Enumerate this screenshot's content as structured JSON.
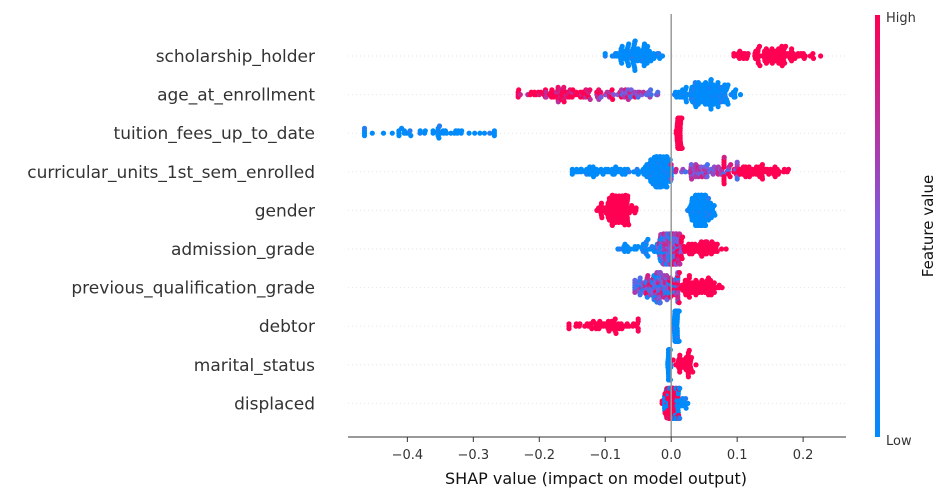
{
  "chart_data": {
    "type": "scatter",
    "subtype": "shap-beeswarm",
    "xlabel": "SHAP value (impact on model output)",
    "xlim": [
      -0.49,
      0.265
    ],
    "xticks": [
      -0.4,
      -0.3,
      -0.2,
      -0.1,
      0.0,
      0.1,
      0.2
    ],
    "xtick_labels": [
      "−0.4",
      "−0.3",
      "−0.2",
      "−0.1",
      "0.0",
      "0.1",
      "0.2"
    ],
    "colorbar": {
      "label": "Feature value",
      "high_label": "High",
      "low_label": "Low",
      "low_color": "#008bfb",
      "high_color": "#ff0052"
    },
    "zero_line": true,
    "features": [
      {
        "name": "scholarship_holder",
        "clusters": [
          {
            "center": -0.053,
            "spread": 0.018,
            "min": -0.1,
            "max": -0.01,
            "n": 90,
            "value": "low"
          },
          {
            "center": 0.15,
            "spread": 0.03,
            "min": 0.095,
            "max": 0.228,
            "n": 100,
            "value": "high"
          }
        ]
      },
      {
        "name": "age_at_enrollment",
        "clusters": [
          {
            "center": -0.16,
            "spread": 0.04,
            "min": -0.232,
            "max": -0.04,
            "n": 90,
            "value": "high-mixed"
          },
          {
            "center": -0.06,
            "spread": 0.025,
            "min": -0.12,
            "max": -0.01,
            "n": 40,
            "value": "mid"
          },
          {
            "center": 0.055,
            "spread": 0.022,
            "min": 0.005,
            "max": 0.105,
            "n": 140,
            "value": "low"
          }
        ]
      },
      {
        "name": "tuition_fees_up_to_date",
        "clusters": [
          {
            "center": -0.36,
            "spread": 0.06,
            "min": -0.465,
            "max": -0.268,
            "n": 50,
            "value": "low"
          },
          {
            "center": 0.012,
            "spread": 0.002,
            "min": 0.007,
            "max": 0.017,
            "n": 80,
            "value": "high"
          }
        ]
      },
      {
        "name": "curricular_units_1st_sem_enrolled",
        "clusters": [
          {
            "center": -0.09,
            "spread": 0.03,
            "min": -0.15,
            "max": -0.03,
            "n": 60,
            "value": "low"
          },
          {
            "center": -0.017,
            "spread": 0.01,
            "min": -0.04,
            "max": 0.0,
            "n": 120,
            "value": "low"
          },
          {
            "center": 0.05,
            "spread": 0.03,
            "min": 0.0,
            "max": 0.1,
            "n": 70,
            "value": "mid"
          },
          {
            "center": 0.12,
            "spread": 0.03,
            "min": 0.08,
            "max": 0.188,
            "n": 70,
            "value": "high"
          }
        ]
      },
      {
        "name": "gender",
        "clusters": [
          {
            "center": -0.08,
            "spread": 0.015,
            "min": -0.133,
            "max": -0.045,
            "n": 110,
            "value": "high"
          },
          {
            "center": 0.045,
            "spread": 0.01,
            "min": 0.02,
            "max": 0.07,
            "n": 120,
            "value": "low"
          }
        ]
      },
      {
        "name": "admission_grade",
        "clusters": [
          {
            "center": -0.03,
            "spread": 0.025,
            "min": -0.085,
            "max": 0.0,
            "n": 60,
            "value": "low"
          },
          {
            "center": 0.0,
            "spread": 0.01,
            "min": -0.02,
            "max": 0.015,
            "n": 110,
            "value": "mid"
          },
          {
            "center": 0.035,
            "spread": 0.025,
            "min": 0.0,
            "max": 0.09,
            "n": 80,
            "value": "high"
          }
        ]
      },
      {
        "name": "previous_qualification_grade",
        "clusters": [
          {
            "center": -0.02,
            "spread": 0.02,
            "min": -0.055,
            "max": 0.01,
            "n": 140,
            "value": "mixed"
          },
          {
            "center": 0.04,
            "spread": 0.02,
            "min": 0.0,
            "max": 0.08,
            "n": 80,
            "value": "high"
          }
        ]
      },
      {
        "name": "debtor",
        "clusters": [
          {
            "center": -0.1,
            "spread": 0.03,
            "min": -0.155,
            "max": -0.05,
            "n": 60,
            "value": "high"
          },
          {
            "center": 0.008,
            "spread": 0.002,
            "min": 0.004,
            "max": 0.013,
            "n": 90,
            "value": "low"
          }
        ]
      },
      {
        "name": "marital_status",
        "clusters": [
          {
            "center": -0.003,
            "spread": 0.001,
            "min": -0.007,
            "max": 0.001,
            "n": 70,
            "value": "low"
          },
          {
            "center": 0.02,
            "spread": 0.01,
            "min": 0.003,
            "max": 0.04,
            "n": 40,
            "value": "high"
          }
        ]
      },
      {
        "name": "displaced",
        "clusters": [
          {
            "center": 0.0,
            "spread": 0.006,
            "min": -0.016,
            "max": 0.012,
            "n": 70,
            "value": "high"
          },
          {
            "center": 0.005,
            "spread": 0.01,
            "min": -0.01,
            "max": 0.032,
            "n": 50,
            "value": "low"
          }
        ]
      }
    ]
  }
}
